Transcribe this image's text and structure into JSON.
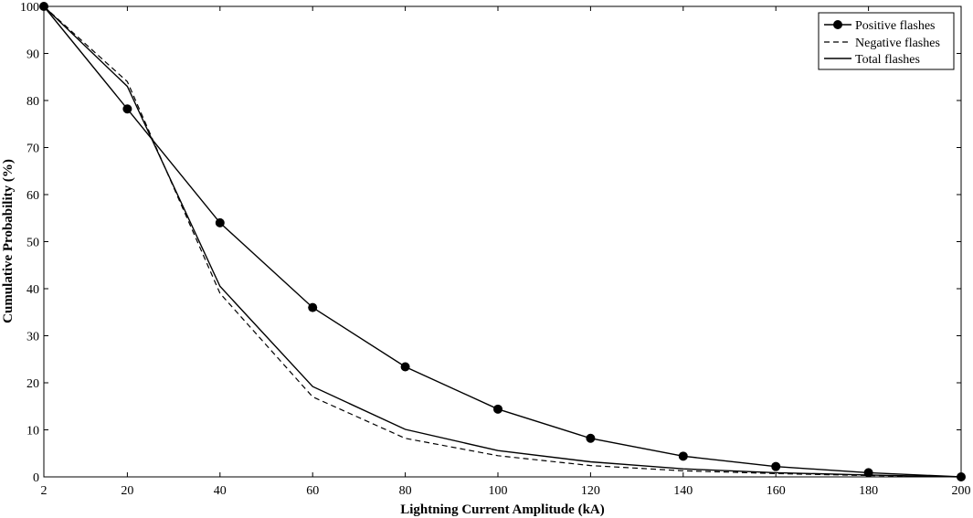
{
  "chart_data": {
    "type": "line",
    "title": "",
    "xlabel": "Lightning Current Amplitude (kA)",
    "ylabel": "Cumulative Probability (%)",
    "x": [
      2,
      20,
      40,
      60,
      80,
      100,
      120,
      140,
      160,
      180,
      200
    ],
    "x_tick_labels": [
      "2",
      "20",
      "40",
      "60",
      "80",
      "100",
      "120",
      "140",
      "160",
      "180",
      "200"
    ],
    "y_ticks": [
      0,
      10,
      20,
      30,
      40,
      50,
      60,
      70,
      80,
      90,
      100
    ],
    "xlim": [
      2,
      200
    ],
    "ylim": [
      0,
      100
    ],
    "grid": false,
    "legend_position": "top-right",
    "series": [
      {
        "name": "Positive flashes",
        "style": "solid-markers",
        "values": [
          100,
          78.2,
          54,
          36,
          23.4,
          14.4,
          8.2,
          4.4,
          2.2,
          0.9,
          0
        ]
      },
      {
        "name": "Negative flashes",
        "style": "dashed",
        "values": [
          100,
          84,
          39,
          17,
          8.2,
          4.5,
          2.4,
          1.3,
          0.7,
          0.3,
          0
        ]
      },
      {
        "name": "Total flashes",
        "style": "solid",
        "values": [
          100,
          83,
          40.5,
          19.2,
          10.1,
          5.6,
          3.2,
          1.7,
          0.9,
          0.4,
          0
        ]
      }
    ],
    "colors": {
      "line": "#000000",
      "background": "#ffffff"
    }
  }
}
